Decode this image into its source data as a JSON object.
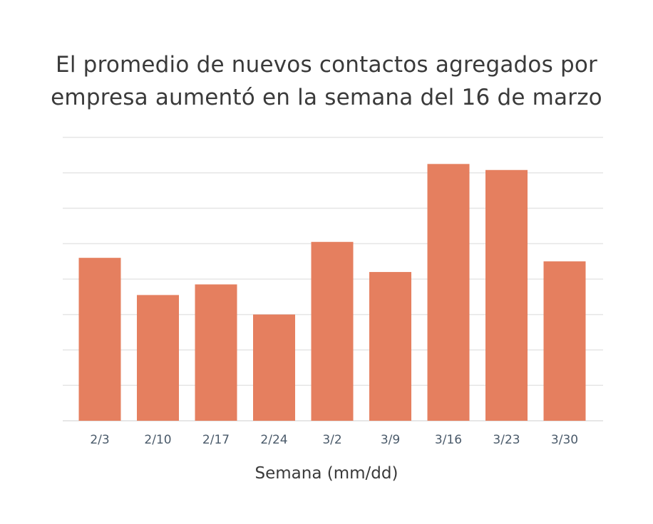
{
  "chart_data": {
    "type": "bar",
    "title_lines": [
      "El promedio de nuevos contactos agregados por",
      "empresa aumentó en la semana del 16 de marzo"
    ],
    "xlabel": "Semana (mm/dd)",
    "categories": [
      "2/3",
      "2/10",
      "2/17",
      "2/24",
      "3/2",
      "3/9",
      "3/16",
      "3/23",
      "3/30"
    ],
    "values": [
      4.6,
      3.55,
      3.85,
      3.0,
      5.05,
      4.2,
      7.25,
      7.08,
      4.5
    ],
    "ylim": [
      0,
      8
    ],
    "grid": true,
    "bar_color": "#e57f5f",
    "grid_color": "#e6e6e6"
  }
}
